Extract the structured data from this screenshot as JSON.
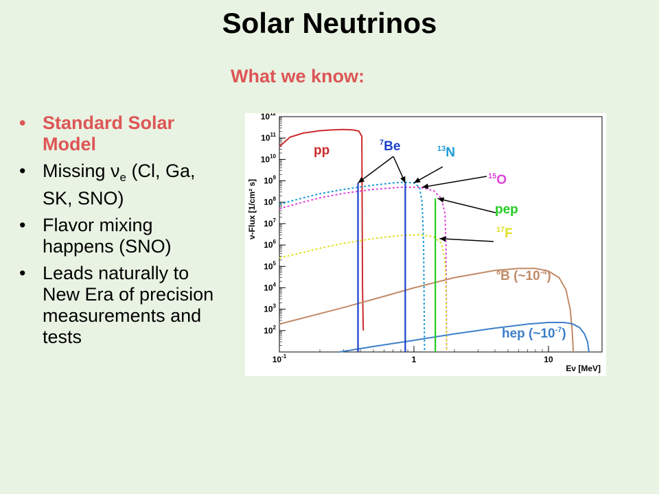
{
  "slide": {
    "title": "Solar Neutrinos",
    "subtitle": "What we know:"
  },
  "bullets": [
    {
      "text": "Standard Solar Model",
      "highlight": true
    },
    {
      "text_before": "Missing ",
      "nu_symbol": "ν",
      "nu_subscript": "e",
      "text_after": " (Cl, Ga, SK, SNO)"
    },
    {
      "text": "Flavor mixing happens (SNO)"
    },
    {
      "text": "Leads naturally to New Era of precision measurements and tests"
    }
  ],
  "colors": {
    "heading": "#dd5555",
    "pp": "#cc2a2a",
    "Be7": "#1a3fc9",
    "N13": "#1a9ad6",
    "O15": "#dd44dd",
    "pep": "#22cc22",
    "F17": "#e0e022",
    "B8": "#c08a66",
    "hep": "#3d7ec8"
  },
  "chart_data": {
    "type": "line",
    "x_scale": "log",
    "y_scale": "log",
    "xlim": [
      0.1,
      25
    ],
    "ylim": [
      10,
      1000000000000.0
    ],
    "x_tick_labels": [
      {
        "value": 0.1,
        "base": "10",
        "exp": "-1"
      },
      {
        "value": 1,
        "label": "1"
      },
      {
        "value": 10,
        "label": "10"
      }
    ],
    "y_tick_labels": [
      {
        "value": 100,
        "base": "10",
        "exp": "2"
      },
      {
        "value": 1000,
        "base": "10",
        "exp": "3"
      },
      {
        "value": 10000,
        "base": "10",
        "exp": "4"
      },
      {
        "value": 100000,
        "base": "10",
        "exp": "5"
      },
      {
        "value": 1000000,
        "base": "10",
        "exp": "6"
      },
      {
        "value": 10000000,
        "base": "10",
        "exp": "7"
      },
      {
        "value": 100000000,
        "base": "10",
        "exp": "8"
      },
      {
        "value": 1000000000,
        "base": "10",
        "exp": "9"
      },
      {
        "value": 10000000000,
        "base": "10",
        "exp": "10"
      },
      {
        "value": 100000000000,
        "base": "10",
        "exp": "11"
      },
      {
        "value": 1000000000000,
        "base": "10",
        "exp": "12"
      }
    ],
    "ylabel": "ν-Flux [1/cm² s]",
    "xlabel": "Eν [MeV]",
    "continuous_series": [
      {
        "name": "pp",
        "color": "#cc2a2a",
        "dashed": false,
        "points": [
          [
            0.1,
            40000000000.0
          ],
          [
            0.12,
            110000000000.0
          ],
          [
            0.15,
            170000000000.0
          ],
          [
            0.2,
            220000000000.0
          ],
          [
            0.25,
            240000000000.0
          ],
          [
            0.3,
            250000000000.0
          ],
          [
            0.35,
            240000000000.0
          ],
          [
            0.39,
            210000000000.0
          ],
          [
            0.41,
            120000000000.0
          ],
          [
            0.415,
            10000.0
          ],
          [
            0.42,
            100
          ]
        ]
      },
      {
        "name": "13N",
        "color": "#1a9ad6",
        "dashed": true,
        "points": [
          [
            0.1,
            80000000.0
          ],
          [
            0.15,
            160000000.0
          ],
          [
            0.2,
            250000000.0
          ],
          [
            0.3,
            400000000.0
          ],
          [
            0.5,
            630000000.0
          ],
          [
            0.7,
            800000000.0
          ],
          [
            0.85,
            860000000.0
          ],
          [
            1.0,
            800000000.0
          ],
          [
            1.1,
            500000000.0
          ],
          [
            1.15,
            100000000.0
          ],
          [
            1.18,
            1000000.0
          ],
          [
            1.2,
            10
          ]
        ]
      },
      {
        "name": "15O",
        "color": "#dd44dd",
        "dashed": true,
        "points": [
          [
            0.1,
            50000000.0
          ],
          [
            0.15,
            100000000.0
          ],
          [
            0.2,
            160000000.0
          ],
          [
            0.3,
            260000000.0
          ],
          [
            0.5,
            400000000.0
          ],
          [
            0.8,
            500000000.0
          ],
          [
            1.1,
            500000000.0
          ],
          [
            1.4,
            350000000.0
          ],
          [
            1.6,
            150000000.0
          ],
          [
            1.7,
            30000000.0
          ],
          [
            1.73,
            1000000.0
          ],
          [
            1.75,
            10
          ]
        ]
      },
      {
        "name": "17F",
        "color": "#e0e022",
        "dashed": true,
        "points": [
          [
            0.1,
            250000.0
          ],
          [
            0.15,
            450000.0
          ],
          [
            0.2,
            700000.0
          ],
          [
            0.3,
            1200000.0
          ],
          [
            0.5,
            2000000.0
          ],
          [
            0.8,
            2800000.0
          ],
          [
            1.1,
            3000000.0
          ],
          [
            1.4,
            2500000.0
          ],
          [
            1.6,
            1200000.0
          ],
          [
            1.7,
            200000.0
          ],
          [
            1.73,
            10000.0
          ],
          [
            1.75,
            10
          ]
        ]
      },
      {
        "name": "8B (~10-4)",
        "color": "#c08a66",
        "dashed": false,
        "points": [
          [
            0.1,
            200
          ],
          [
            0.3,
            1200
          ],
          [
            0.6,
            4000
          ],
          [
            1,
            10000.0
          ],
          [
            2,
            30000.0
          ],
          [
            4,
            65000.0
          ],
          [
            6,
            80000.0
          ],
          [
            8,
            80000.0
          ],
          [
            10,
            60000.0
          ],
          [
            12,
            30000.0
          ],
          [
            13.5,
            8000.0
          ],
          [
            14.5,
            1000.0
          ],
          [
            15,
            100
          ],
          [
            15.3,
            10
          ]
        ]
      },
      {
        "name": "hep (~10-7)",
        "color": "#3d7ec8",
        "dashed": false,
        "points": [
          [
            0.28,
            10
          ],
          [
            0.5,
            18
          ],
          [
            1,
            35
          ],
          [
            2,
            70
          ],
          [
            4,
            130
          ],
          [
            7,
            200
          ],
          [
            10,
            240
          ],
          [
            13,
            240
          ],
          [
            15,
            210
          ],
          [
            17,
            140
          ],
          [
            18.5,
            70
          ],
          [
            19.5,
            30
          ],
          [
            20,
            10
          ]
        ]
      }
    ],
    "lines": [
      {
        "name": "7Be",
        "energy_MeV": 0.384,
        "flux": 800000000.0,
        "color": "#1a3fc9"
      },
      {
        "name": "7Be",
        "energy_MeV": 0.862,
        "flux": 800000000.0,
        "color": "#1a3fc9"
      },
      {
        "name": "pep",
        "energy_MeV": 1.442,
        "flux": 150000000.0,
        "color": "#22cc22"
      }
    ],
    "annotations": [
      {
        "id": "pp",
        "main": "pp",
        "color": "#cc2a2a"
      },
      {
        "id": "Be7",
        "sup": "7",
        "main": "Be",
        "color": "#1a3fc9"
      },
      {
        "id": "N13",
        "sup": "13",
        "main": "N",
        "color": "#1a9ad6"
      },
      {
        "id": "O15",
        "sup": "15",
        "main": "O",
        "color": "#dd44dd"
      },
      {
        "id": "pep",
        "main": "pep",
        "color": "#22cc22"
      },
      {
        "id": "F17",
        "sup": "17",
        "main": "F",
        "color": "#e0e022"
      },
      {
        "id": "B8",
        "sup": "8",
        "main": "B (~10",
        "tail_sup": "-4",
        "tail": ")",
        "color": "#c08a66"
      },
      {
        "id": "hep",
        "main": "hep (~10",
        "tail_sup": "-7",
        "tail": ")",
        "color": "#3d7ec8"
      }
    ],
    "arrows": [
      {
        "from": "Be7",
        "to_energy": 0.384,
        "to_flux": 800000000.0
      },
      {
        "from": "Be7",
        "to_energy": 0.862,
        "to_flux": 800000000.0
      },
      {
        "from": "N13",
        "to_energy": 1.0,
        "to_flux": 800000000.0
      },
      {
        "from": "O15",
        "to_energy": 1.15,
        "to_flux": 500000000.0
      },
      {
        "from": "pep",
        "to_energy": 1.5,
        "to_flux": 150000000.0
      },
      {
        "from": "F17",
        "to_energy": 1.55,
        "to_flux": 2000000.0
      }
    ]
  }
}
